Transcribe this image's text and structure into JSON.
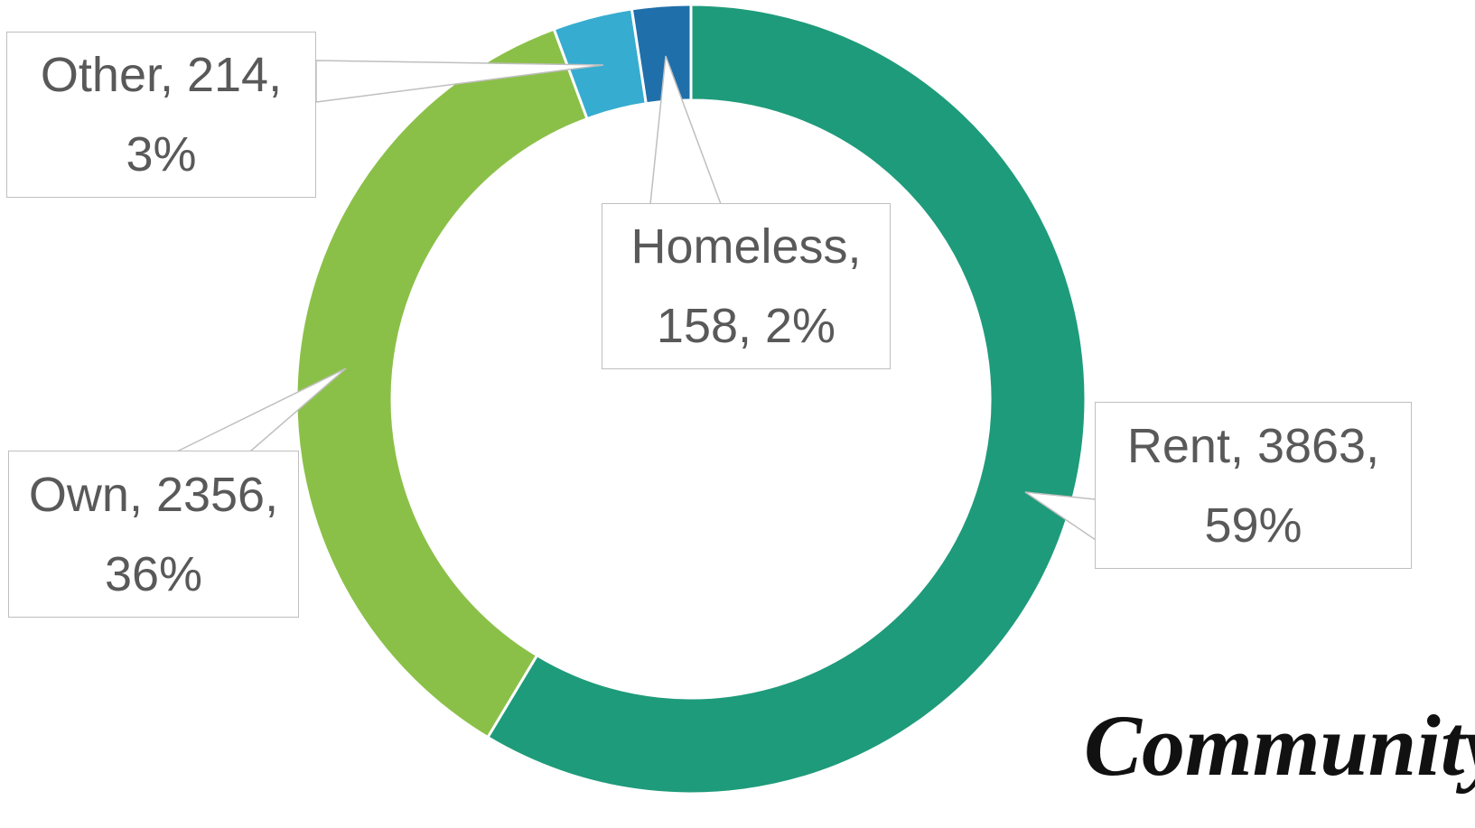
{
  "chart_data": {
    "type": "donut",
    "categories": [
      "Rent",
      "Own",
      "Other",
      "Homeless"
    ],
    "values": [
      3863,
      2356,
      214,
      158
    ],
    "value_labels": [
      "Rent, 3863, 59%",
      "Own, 2356, 36%",
      "Other, 214, 3%",
      "Homeless, 158, 2%"
    ],
    "colors": [
      "#1e9b7a",
      "#8bc048",
      "#36acd0",
      "#1f6fab"
    ]
  },
  "logo_text": "Community"
}
